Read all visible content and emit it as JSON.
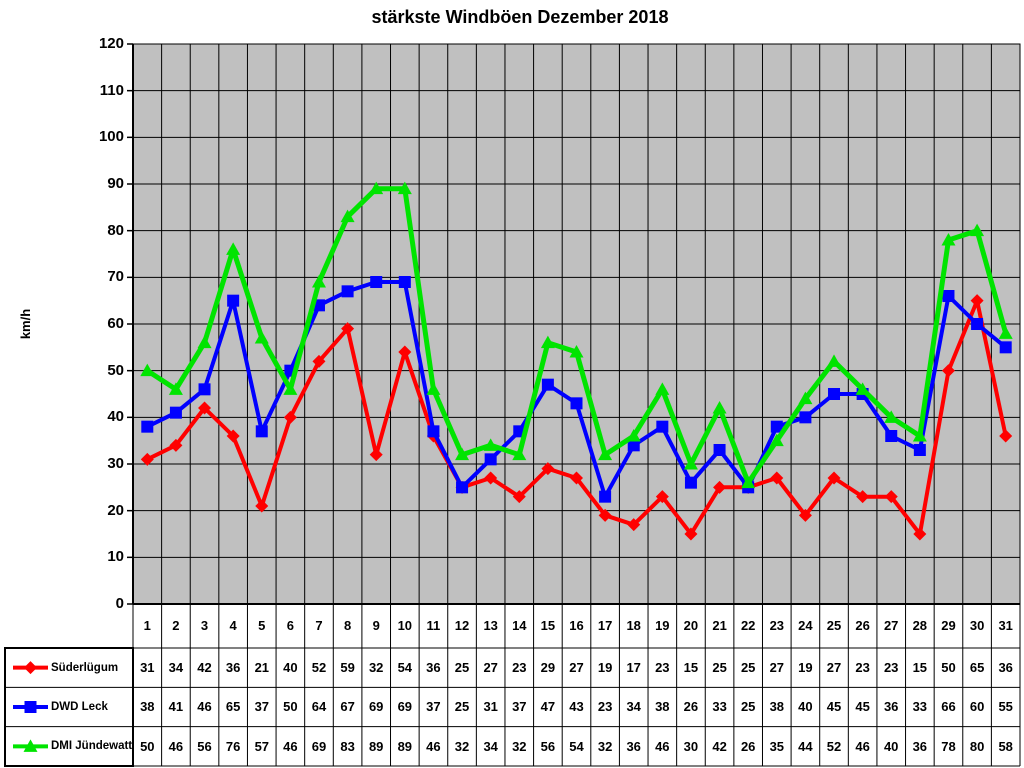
{
  "title": "stärkste Windböen Dezember 2018",
  "chart_data": {
    "type": "line",
    "title": "stärkste Windböen Dezember 2018",
    "xlabel": "",
    "ylabel": "km/h",
    "ylim": [
      0,
      120
    ],
    "ytick_step": 10,
    "ytick_labels": [
      "0",
      "10",
      "20",
      "30",
      "40",
      "50",
      "60",
      "70",
      "80",
      "90",
      "100",
      "110",
      "120"
    ],
    "categories": [
      "1",
      "2",
      "3",
      "4",
      "5",
      "6",
      "7",
      "8",
      "9",
      "10",
      "11",
      "12",
      "13",
      "14",
      "15",
      "16",
      "17",
      "18",
      "19",
      "20",
      "21",
      "22",
      "23",
      "24",
      "25",
      "26",
      "27",
      "28",
      "29",
      "30",
      "31"
    ],
    "grid": true,
    "plot_background": "#C0C0C0",
    "grid_color": "#000000",
    "legend_position": "bottom-left-table",
    "series": [
      {
        "name": "Süderlügum",
        "color": "#FF0000",
        "marker": "diamond",
        "values": [
          31,
          34,
          42,
          36,
          21,
          40,
          52,
          59,
          32,
          54,
          36,
          25,
          27,
          23,
          29,
          27,
          19,
          17,
          23,
          15,
          25,
          25,
          27,
          19,
          27,
          23,
          23,
          15,
          50,
          65,
          36
        ]
      },
      {
        "name": "DWD Leck",
        "color": "#0000FF",
        "marker": "square",
        "values": [
          38,
          41,
          46,
          65,
          37,
          50,
          64,
          67,
          69,
          69,
          37,
          25,
          31,
          37,
          47,
          43,
          23,
          34,
          38,
          26,
          33,
          25,
          38,
          40,
          45,
          45,
          36,
          33,
          66,
          60,
          55
        ]
      },
      {
        "name": "DMI Jündewatt",
        "color": "#00E400",
        "marker": "triangle",
        "values": [
          50,
          46,
          56,
          76,
          57,
          46,
          69,
          83,
          89,
          89,
          46,
          32,
          34,
          32,
          56,
          54,
          32,
          36,
          46,
          30,
          42,
          26,
          35,
          44,
          52,
          46,
          40,
          36,
          78,
          80,
          58
        ]
      }
    ]
  }
}
